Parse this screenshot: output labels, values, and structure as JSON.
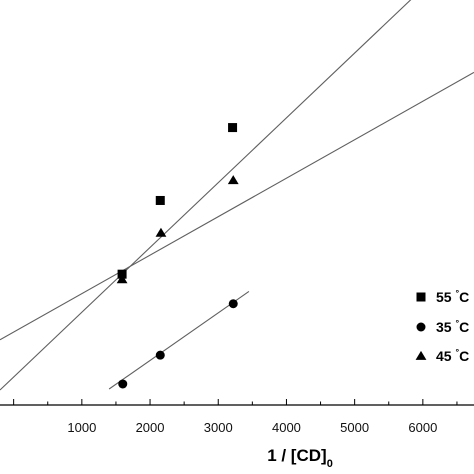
{
  "chart_data": {
    "type": "scatter",
    "title": "",
    "xlabel": "1 / [CD]",
    "xlabel_subscript": "0",
    "ylabel": "",
    "xlim": [
      -200,
      6750
    ],
    "ylim": [
      0,
      100
    ],
    "x_ticks": [
      2000,
      3000,
      4000,
      5000,
      6000
    ],
    "x_tick_labels": [
      "2000",
      "3000",
      "4000",
      "5000",
      "6000"
    ],
    "x_tick_label_partial": "0",
    "grid": false,
    "legend_position": "right",
    "series": [
      {
        "name": "55 °C",
        "degree_symbol": "°",
        "legend_text_shown": "55 °C",
        "marker": "square",
        "x": [
          1590,
          2150,
          3210
        ],
        "y": [
          32.3,
          50.5,
          68.5
        ],
        "fit": {
          "slope": 0.016,
          "intercept": 6.9,
          "x_range": [
            -200,
            6750
          ]
        }
      },
      {
        "name": "35 °C",
        "marker": "circle",
        "x": [
          1600,
          2150,
          3220
        ],
        "y": [
          5.2,
          12.3,
          25.0
        ],
        "fit": {
          "slope": 0.01175,
          "intercept": -12.5,
          "x_range": [
            1400,
            3450
          ]
        }
      },
      {
        "name": "45 °C",
        "marker": "triangle",
        "x": [
          1590,
          2160,
          3220
        ],
        "y": [
          31.0,
          42.5,
          55.5
        ],
        "fit": {
          "slope": 0.0095,
          "intercept": 18.0,
          "x_range": [
            -200,
            6750
          ]
        }
      }
    ],
    "legend_entries_shown": [
      "55 °C",
      "35 °C",
      "45 °C"
    ],
    "colors": {
      "markers": "#000000",
      "fit_lines": "#606060",
      "axis": "#000000"
    }
  }
}
